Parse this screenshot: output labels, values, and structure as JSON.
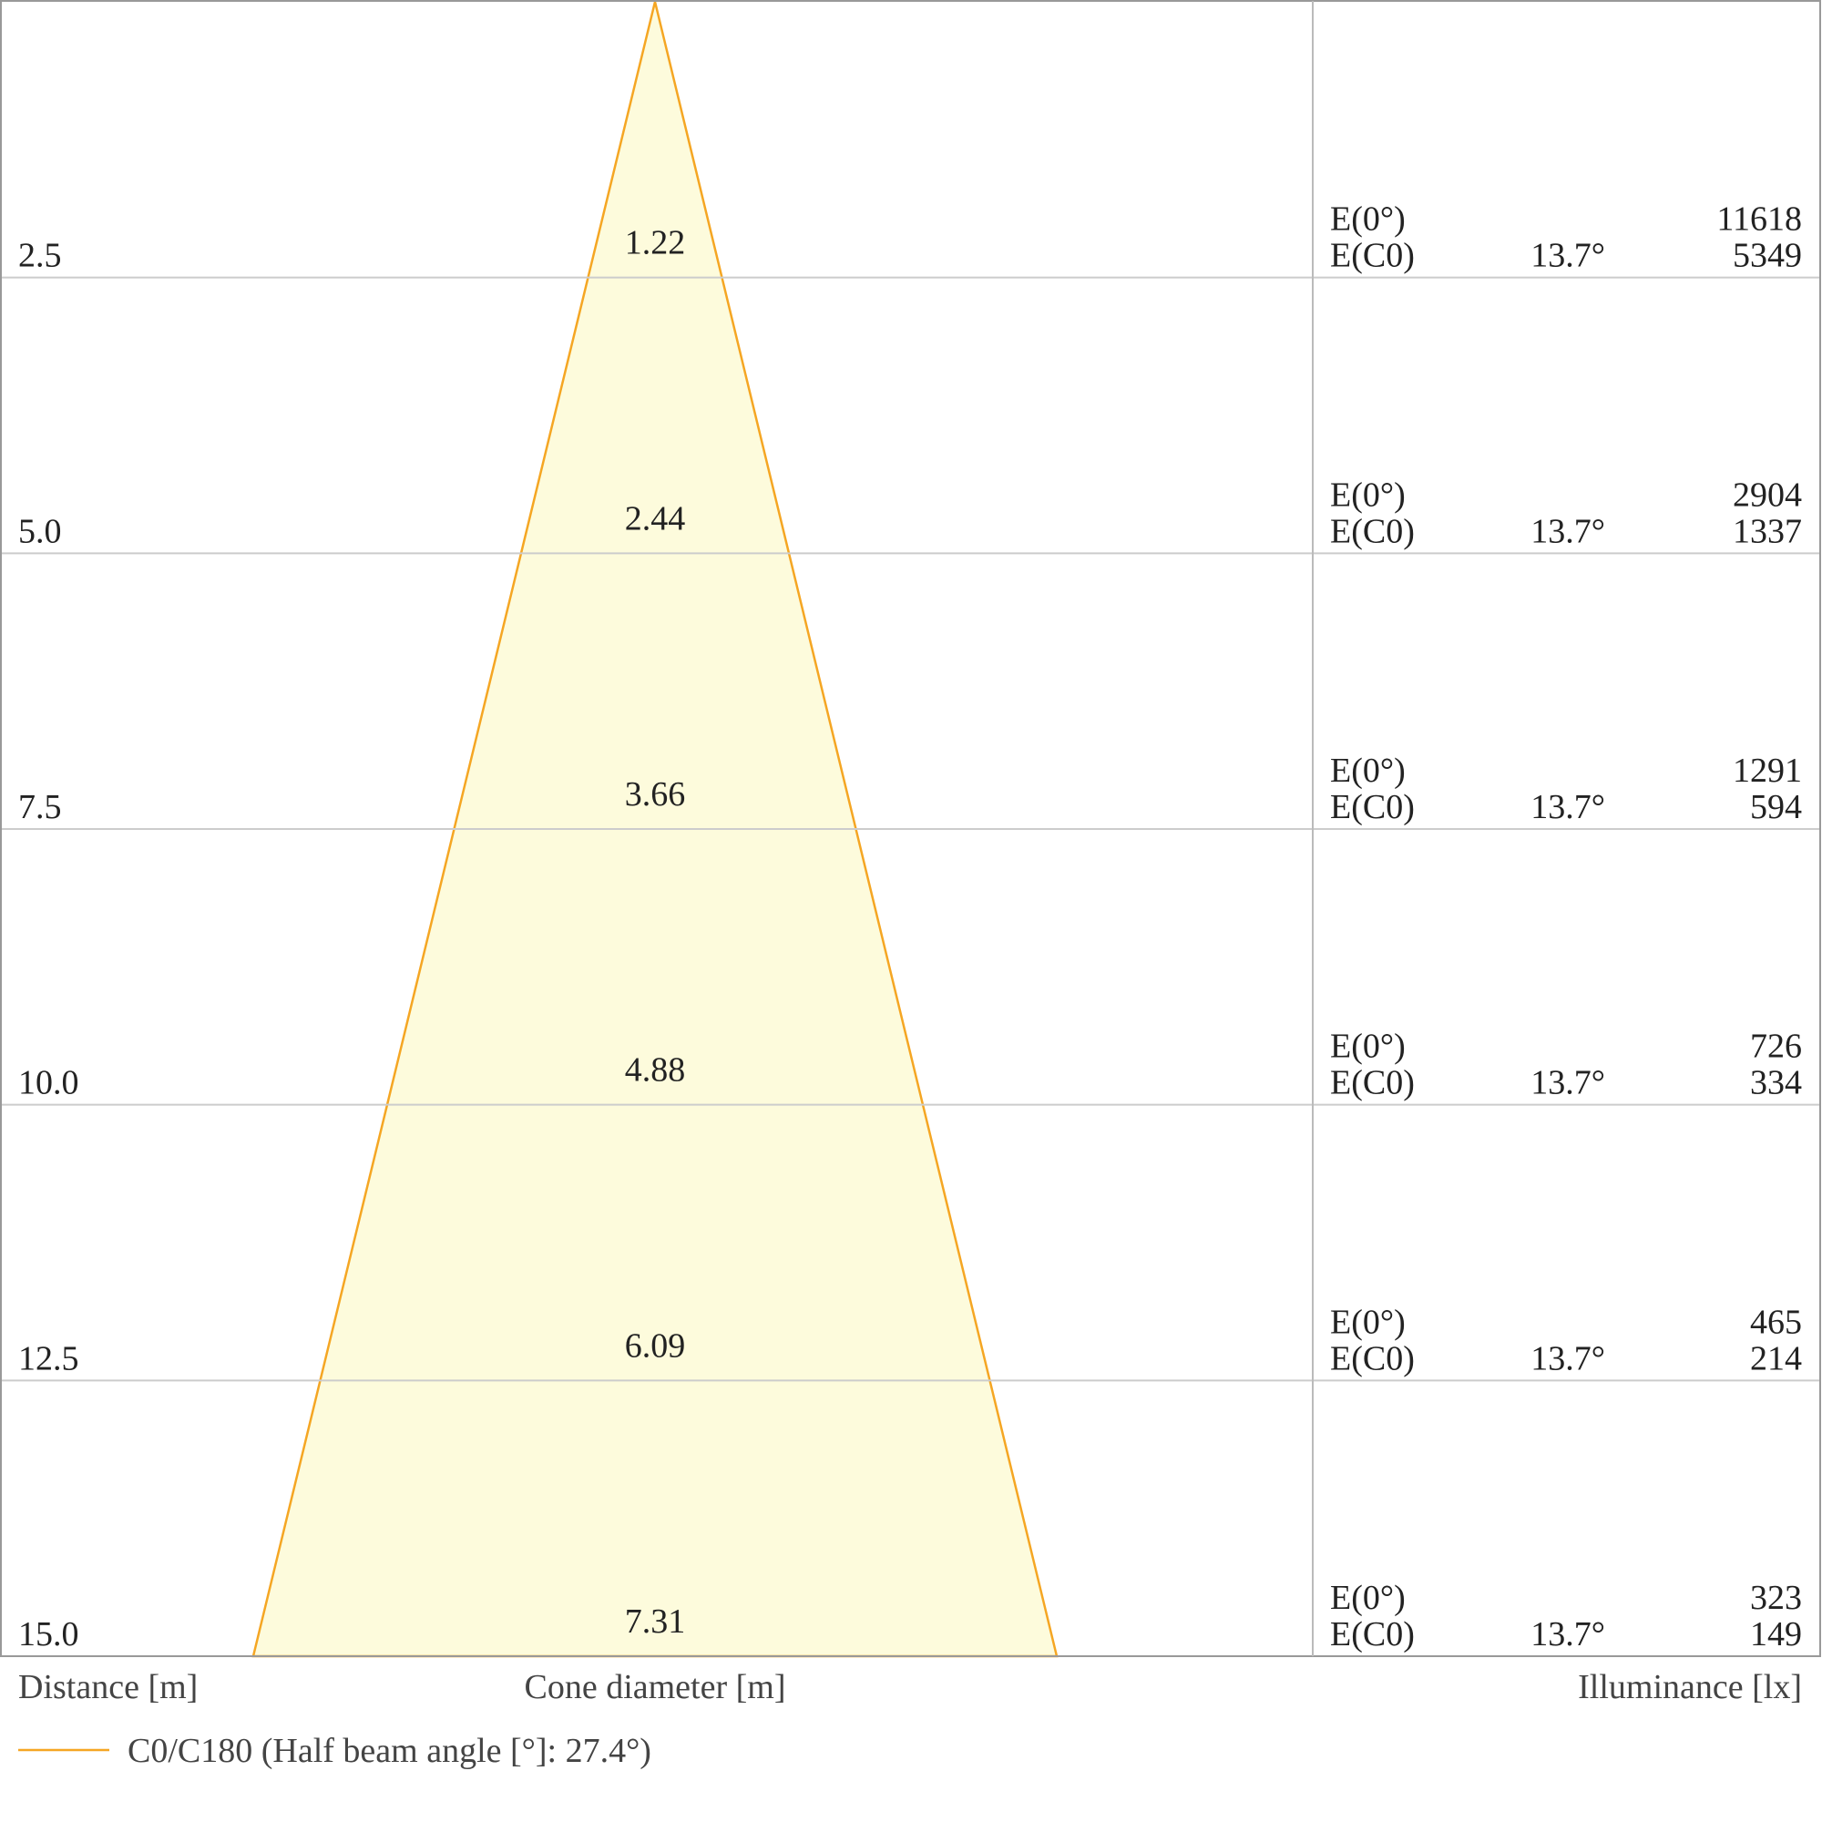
{
  "chart_data": {
    "type": "cone-diagram",
    "x_labels": {
      "distance": "Distance [m]",
      "cone": "Cone diameter [m]",
      "illuminance": "Illuminance [lx]"
    },
    "legend": {
      "label": "C0/C180 (Half beam angle [°]: 27.4°)",
      "color": "#f5a623"
    },
    "fill_color": "#fdfbdc",
    "rows": [
      {
        "distance": "2.5",
        "diameter": "1.22",
        "e0_label": "E(0°)",
        "ec0_label": "E(C0)",
        "angle": "13.7°",
        "e0": "11618",
        "ec0": "5349"
      },
      {
        "distance": "5.0",
        "diameter": "2.44",
        "e0_label": "E(0°)",
        "ec0_label": "E(C0)",
        "angle": "13.7°",
        "e0": "2904",
        "ec0": "1337"
      },
      {
        "distance": "7.5",
        "diameter": "3.66",
        "e0_label": "E(0°)",
        "ec0_label": "E(C0)",
        "angle": "13.7°",
        "e0": "1291",
        "ec0": "594"
      },
      {
        "distance": "10.0",
        "diameter": "4.88",
        "e0_label": "E(0°)",
        "ec0_label": "E(C0)",
        "angle": "13.7°",
        "e0": "726",
        "ec0": "334"
      },
      {
        "distance": "12.5",
        "diameter": "6.09",
        "e0_label": "E(0°)",
        "ec0_label": "E(C0)",
        "angle": "13.7°",
        "e0": "465",
        "ec0": "214"
      },
      {
        "distance": "15.0",
        "diameter": "7.31",
        "e0_label": "E(0°)",
        "ec0_label": "E(C0)",
        "angle": "13.7°",
        "e0": "323",
        "ec0": "149"
      }
    ],
    "max_distance": 15.0,
    "max_diameter": 7.31
  }
}
